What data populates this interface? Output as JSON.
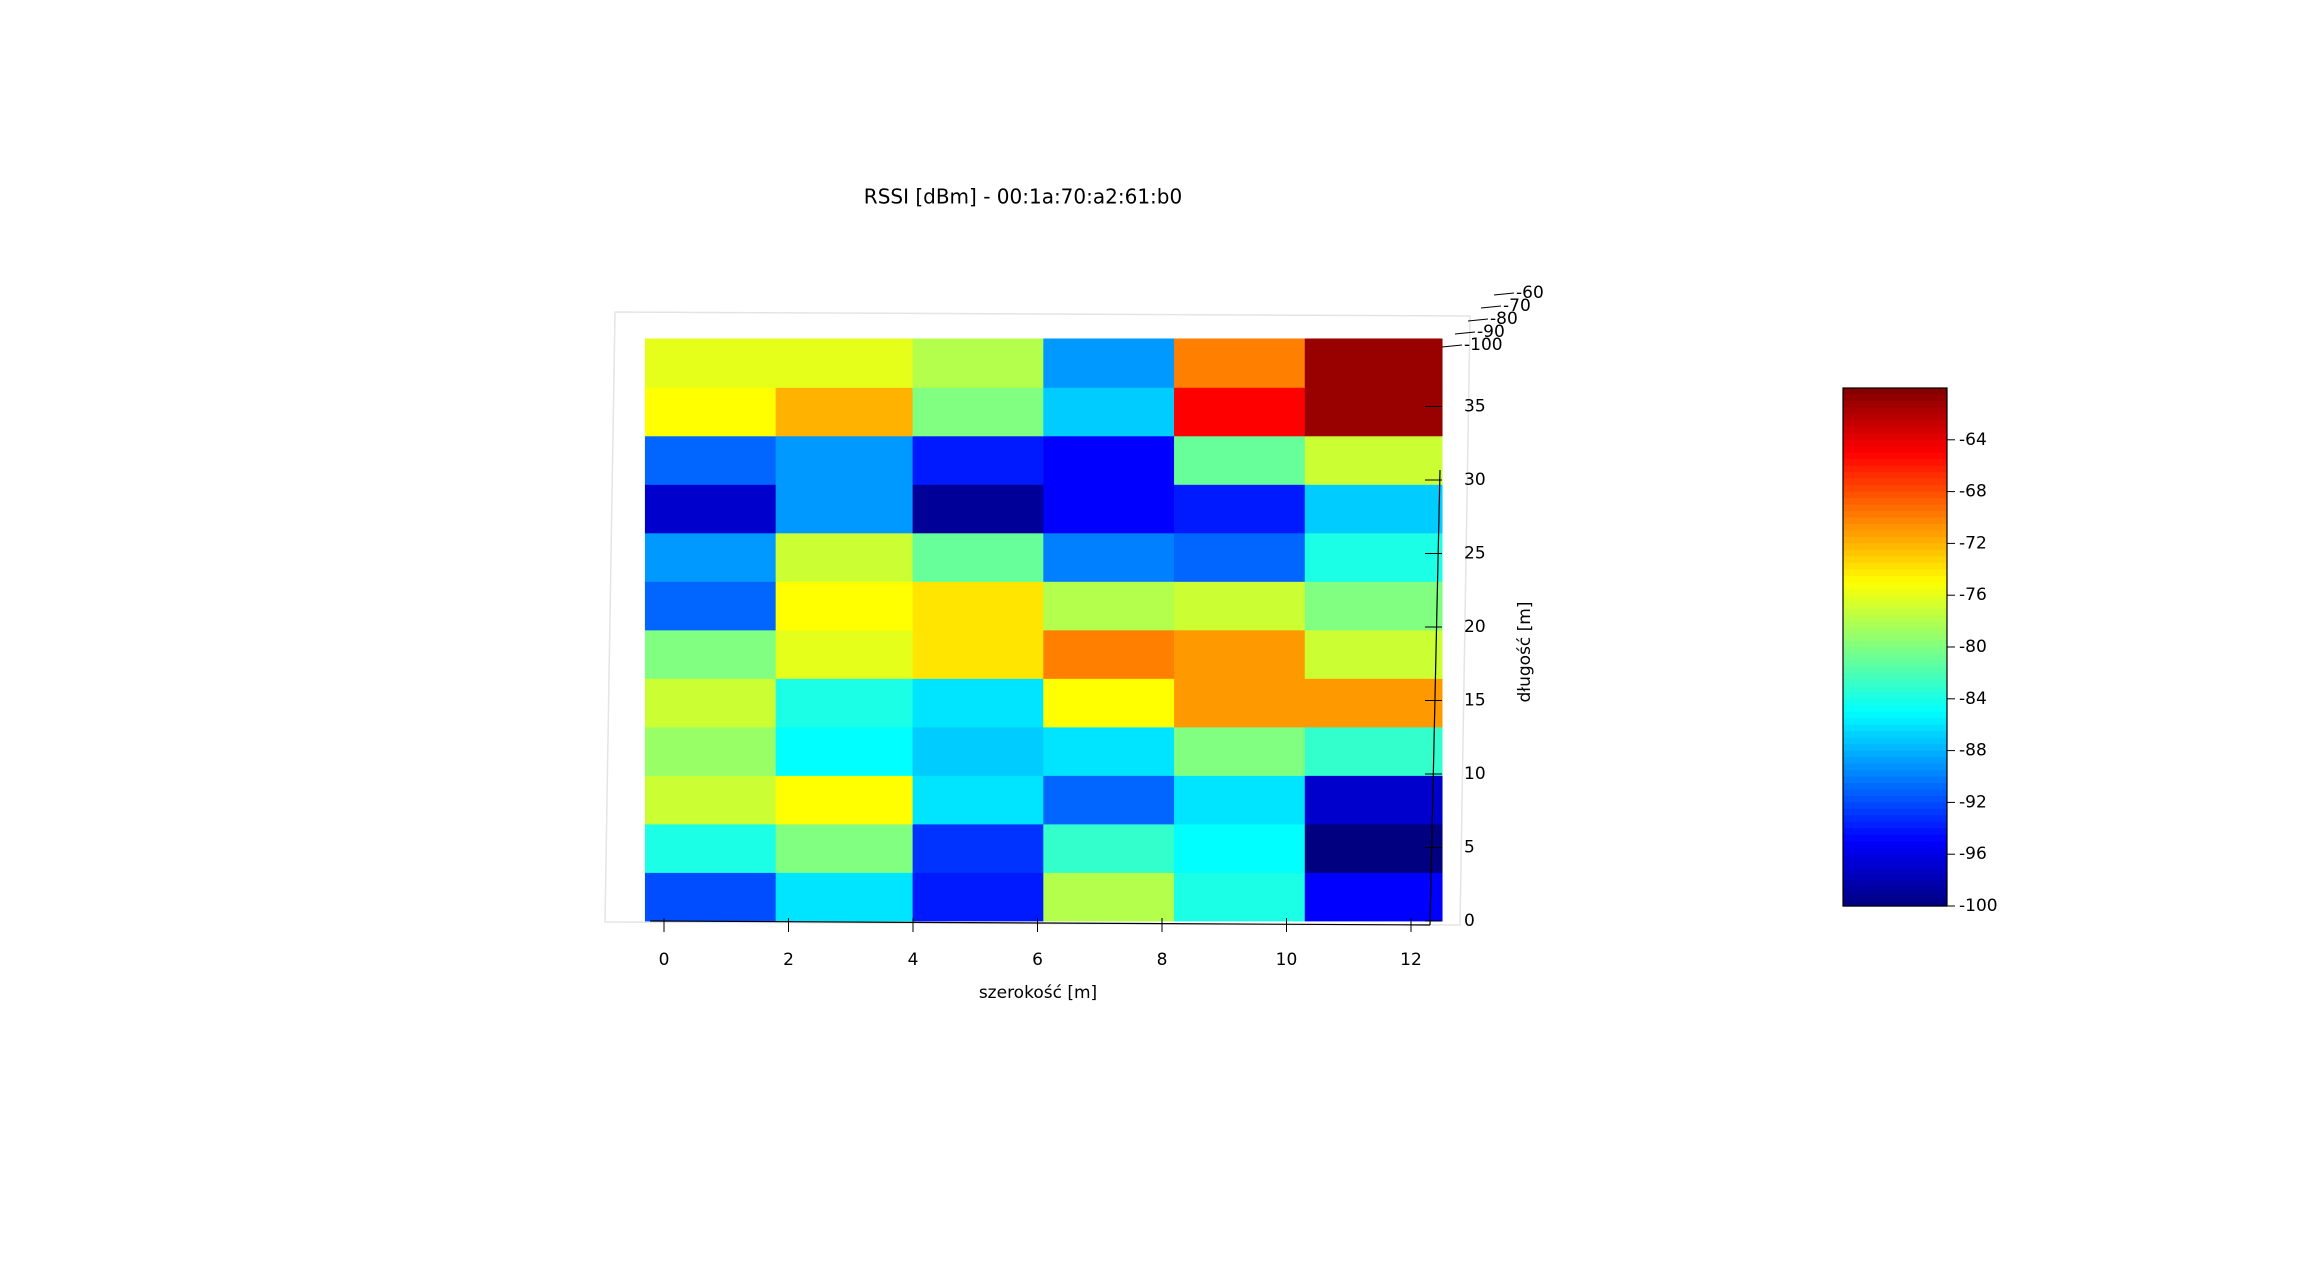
{
  "chart_data": {
    "type": "surface",
    "title": "RSSI [dBm] - 00:1a:70:a2:61:b0",
    "xlabel": "szerokość [m]",
    "ylabel": "długość [m]",
    "colormap": "jet",
    "x_edges": [
      -0.3,
      1.8,
      4,
      6.1,
      8.2,
      10.3,
      12.5
    ],
    "y_edges": [
      0,
      3.3,
      6.6,
      9.9,
      13.2,
      16.5,
      19.8,
      23.1,
      26.4,
      29.7,
      33,
      36.3,
      39.6
    ],
    "values": [
      [
        -92,
        -86,
        -94,
        -78,
        -84,
        -95
      ],
      [
        -84,
        -80,
        -93,
        -83,
        -85,
        -100
      ],
      [
        -77,
        -75,
        -86,
        -91,
        -86,
        -97
      ],
      [
        -79,
        -85,
        -87,
        -86,
        -80,
        -83
      ],
      [
        -77,
        -84,
        -86,
        -75,
        -71,
        -71
      ],
      [
        -80,
        -76,
        -74,
        -70,
        -71,
        -77
      ],
      [
        -91,
        -75,
        -74,
        -78,
        -77,
        -80
      ],
      [
        -89,
        -77,
        -81,
        -90,
        -91,
        -84
      ],
      [
        -97,
        -89,
        -99,
        -95,
        -94,
        -87
      ],
      [
        -91,
        -89,
        -94,
        -95,
        -81,
        -77
      ],
      [
        -75,
        -72,
        -80,
        -87,
        -65,
        -61
      ],
      [
        -76,
        -76,
        -78,
        -89,
        -70,
        -61
      ]
    ],
    "xlim": [
      0,
      12
    ],
    "xticks": [
      0,
      2,
      4,
      6,
      8,
      10,
      12
    ],
    "ylim": [
      0,
      35
    ],
    "yticks": [
      0,
      5,
      10,
      15,
      20,
      25,
      30,
      35
    ],
    "zlim": [
      -100,
      -60
    ],
    "zticks": [
      -100,
      -90,
      -80,
      -70,
      -60
    ],
    "clim": [
      -100,
      -60
    ],
    "cticks": [
      -100,
      -96,
      -92,
      -88,
      -84,
      -80,
      -76,
      -72,
      -68,
      -64
    ]
  }
}
